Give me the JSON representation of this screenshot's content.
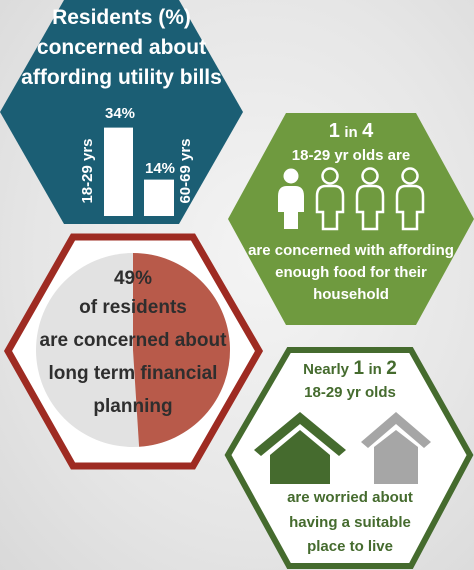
{
  "utility": {
    "title_line1": "Residents (%)",
    "title_line2": "concerned about",
    "title_line3": "affording utility bills",
    "bar1_label": "34%",
    "bar1_age": "18-29 yrs",
    "bar2_label": "14%",
    "bar2_age": "60-69 yrs",
    "color": "#1b5e74"
  },
  "chart_data": {
    "type": "bar",
    "categories": [
      "18-29 yrs",
      "60-69 yrs"
    ],
    "values": [
      34,
      14
    ],
    "title": "Residents (%) concerned about affording utility bills"
  },
  "food": {
    "ratio_num": "1",
    "ratio_in": "in",
    "ratio_den": "4",
    "sub": "18-29 yr olds are",
    "line1": "are concerned with affording",
    "line2": "enough food for their",
    "line3": "household",
    "people_total": 4,
    "people_highlighted": 1,
    "color": "#6f9a3f"
  },
  "finance": {
    "percent": "49%",
    "line1": "of residents",
    "line2": "are concerned about",
    "line3": "long term financial",
    "line4": "planning",
    "share": 0.49,
    "border_color": "#9e2b22",
    "fill_color": "#b85a4a"
  },
  "housing": {
    "pre": "Nearly",
    "num": "1",
    "in": "in",
    "den": "2",
    "sub": "18-29 yr olds",
    "line1": "are worried about",
    "line2": "having a suitable",
    "line3": "place to live",
    "border_color": "#456b2e",
    "house_colors": [
      "#456b2e",
      "#a6a6a6"
    ]
  }
}
